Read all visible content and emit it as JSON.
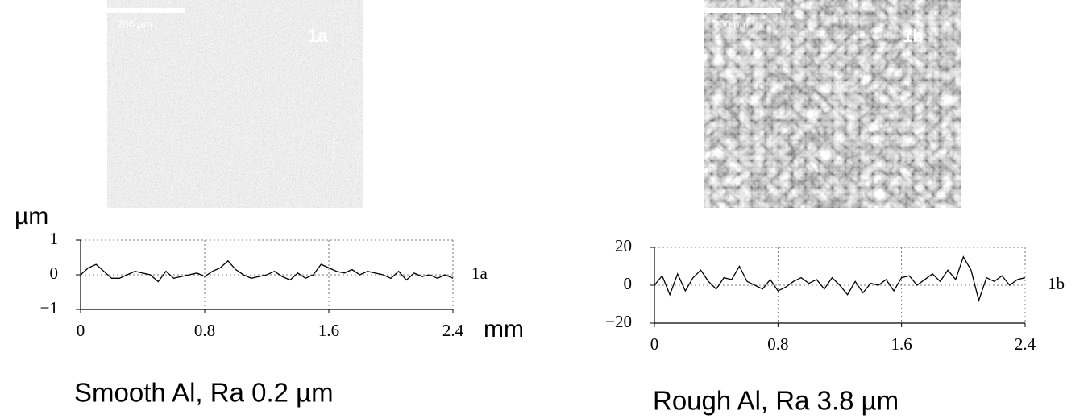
{
  "chart_data": [
    {
      "type": "line",
      "image": {
        "scale_bar": "200 µm",
        "label": "1a"
      },
      "y_label": "µm",
      "x_label": "mm",
      "series_label": "1a",
      "caption": "Smooth Al, Ra 0.2 µm",
      "x": [
        0,
        0.05,
        0.1,
        0.15,
        0.2,
        0.25,
        0.3,
        0.35,
        0.4,
        0.45,
        0.5,
        0.55,
        0.6,
        0.65,
        0.7,
        0.75,
        0.8,
        0.85,
        0.9,
        0.95,
        1.0,
        1.05,
        1.1,
        1.15,
        1.2,
        1.25,
        1.3,
        1.35,
        1.4,
        1.45,
        1.5,
        1.55,
        1.6,
        1.65,
        1.7,
        1.75,
        1.8,
        1.85,
        1.9,
        1.95,
        2.0,
        2.05,
        2.1,
        2.15,
        2.2,
        2.25,
        2.3,
        2.35,
        2.4
      ],
      "series": [
        {
          "color": "#000000",
          "values": [
            0.0,
            0.2,
            0.3,
            0.1,
            -0.1,
            -0.1,
            0.0,
            0.1,
            0.05,
            0.0,
            -0.2,
            0.1,
            -0.1,
            -0.05,
            0.0,
            0.05,
            -0.05,
            0.1,
            0.2,
            0.4,
            0.15,
            0.0,
            -0.1,
            -0.05,
            0.0,
            0.1,
            -0.05,
            -0.15,
            0.05,
            -0.1,
            0.0,
            0.3,
            0.2,
            0.1,
            0.05,
            0.15,
            0.0,
            0.1,
            0.05,
            0.0,
            -0.1,
            0.1,
            -0.15,
            0.05,
            -0.05,
            0.0,
            -0.1,
            0.0,
            -0.1
          ]
        }
      ],
      "xlim": [
        0,
        2.4
      ],
      "xticks": [
        0,
        0.8,
        1.6,
        2.4
      ],
      "ylim": [
        -1,
        1
      ],
      "yticks": [
        {
          "value": -1,
          "label": "−1"
        },
        0,
        1
      ],
      "grid": true
    },
    {
      "type": "line",
      "image": {
        "scale_bar": "200 µm",
        "label": "1b"
      },
      "series_label": "1b",
      "caption": "Rough Al, Ra 3.8 µm",
      "x": [
        0,
        0.05,
        0.1,
        0.15,
        0.2,
        0.25,
        0.3,
        0.35,
        0.4,
        0.45,
        0.5,
        0.55,
        0.6,
        0.65,
        0.7,
        0.75,
        0.8,
        0.85,
        0.9,
        0.95,
        1.0,
        1.05,
        1.1,
        1.15,
        1.2,
        1.25,
        1.3,
        1.35,
        1.4,
        1.45,
        1.5,
        1.55,
        1.6,
        1.65,
        1.7,
        1.75,
        1.8,
        1.85,
        1.9,
        1.95,
        2.0,
        2.05,
        2.1,
        2.15,
        2.2,
        2.25,
        2.3,
        2.35,
        2.4
      ],
      "series": [
        {
          "color": "#000000",
          "values": [
            0,
            5,
            -5,
            6,
            -3,
            4,
            8,
            2,
            -2,
            4,
            3,
            10,
            2,
            0,
            -2,
            3,
            -3,
            -1,
            2,
            4,
            1,
            3,
            -2,
            4,
            0,
            -5,
            2,
            -4,
            1,
            0,
            3,
            -3,
            4,
            5,
            0,
            3,
            6,
            2,
            8,
            3,
            15,
            8,
            -8,
            4,
            2,
            5,
            0,
            3,
            4
          ]
        }
      ],
      "xlim": [
        0,
        2.4
      ],
      "xticks": [
        0,
        0.8,
        1.6,
        2.4
      ],
      "ylim": [
        -20,
        20
      ],
      "yticks": [
        {
          "value": -20,
          "label": "−20"
        },
        0,
        20
      ],
      "grid": true
    }
  ]
}
